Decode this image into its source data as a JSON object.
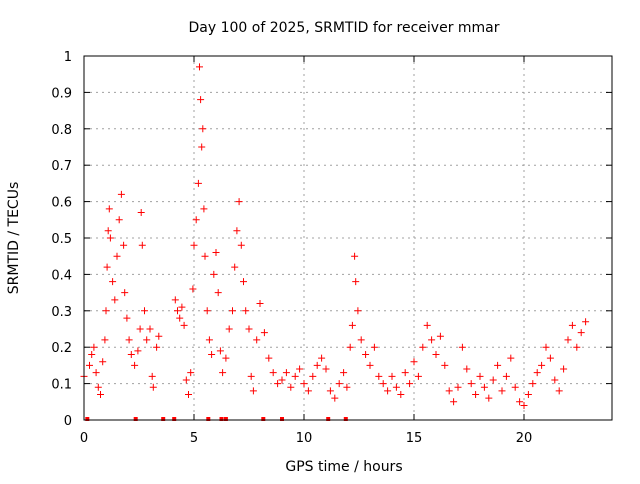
{
  "chart_data": {
    "type": "scatter",
    "title": "Day 100 of 2025, SRMTID for receiver mmar",
    "xlabel": "GPS time / hours",
    "ylabel": "SRMTID / TECUs",
    "xlim": [
      0,
      24
    ],
    "ylim": [
      0,
      1
    ],
    "x_ticks": [
      0,
      5,
      10,
      15,
      20
    ],
    "x_tick_labels": [
      "0",
      "5",
      "10",
      "15",
      "20"
    ],
    "y_ticks": [
      0,
      0.1,
      0.2,
      0.3,
      0.4,
      0.5,
      0.6,
      0.7,
      0.8,
      0.9,
      1
    ],
    "y_tick_labels": [
      "0",
      "0.1",
      "0.2",
      "0.3",
      "0.4",
      "0.5",
      "0.6",
      "0.7",
      "0.8",
      "0.9",
      "1"
    ],
    "grid": true,
    "marker": "+",
    "color": "#ff0000",
    "series": [
      {
        "name": "SRMTID",
        "points": [
          [
            0.0,
            0.12
          ],
          [
            0.25,
            0.15
          ],
          [
            0.35,
            0.18
          ],
          [
            0.45,
            0.2
          ],
          [
            0.55,
            0.13
          ],
          [
            0.65,
            0.09
          ],
          [
            0.75,
            0.07
          ],
          [
            0.85,
            0.16
          ],
          [
            0.95,
            0.22
          ],
          [
            1.0,
            0.3
          ],
          [
            1.05,
            0.42
          ],
          [
            1.1,
            0.52
          ],
          [
            1.15,
            0.58
          ],
          [
            1.2,
            0.5
          ],
          [
            1.3,
            0.38
          ],
          [
            1.4,
            0.33
          ],
          [
            1.5,
            0.45
          ],
          [
            1.6,
            0.55
          ],
          [
            1.7,
            0.62
          ],
          [
            1.8,
            0.48
          ],
          [
            1.85,
            0.35
          ],
          [
            1.95,
            0.28
          ],
          [
            2.05,
            0.22
          ],
          [
            2.15,
            0.18
          ],
          [
            2.3,
            0.15
          ],
          [
            2.45,
            0.19
          ],
          [
            2.55,
            0.25
          ],
          [
            2.6,
            0.57
          ],
          [
            2.65,
            0.48
          ],
          [
            2.75,
            0.3
          ],
          [
            2.85,
            0.22
          ],
          [
            3.0,
            0.25
          ],
          [
            3.1,
            0.12
          ],
          [
            3.15,
            0.09
          ],
          [
            3.3,
            0.2
          ],
          [
            3.4,
            0.23
          ],
          [
            4.15,
            0.33
          ],
          [
            4.25,
            0.3
          ],
          [
            4.35,
            0.28
          ],
          [
            4.45,
            0.31
          ],
          [
            4.55,
            0.26
          ],
          [
            4.65,
            0.11
          ],
          [
            4.75,
            0.07
          ],
          [
            4.85,
            0.13
          ],
          [
            4.95,
            0.36
          ],
          [
            5.0,
            0.48
          ],
          [
            5.1,
            0.55
          ],
          [
            5.2,
            0.65
          ],
          [
            5.25,
            0.97
          ],
          [
            5.3,
            0.88
          ],
          [
            5.35,
            0.75
          ],
          [
            5.4,
            0.8
          ],
          [
            5.45,
            0.58
          ],
          [
            5.5,
            0.45
          ],
          [
            5.6,
            0.3
          ],
          [
            5.7,
            0.22
          ],
          [
            5.8,
            0.18
          ],
          [
            5.9,
            0.4
          ],
          [
            6.0,
            0.46
          ],
          [
            6.1,
            0.35
          ],
          [
            6.2,
            0.19
          ],
          [
            6.3,
            0.13
          ],
          [
            6.45,
            0.17
          ],
          [
            6.6,
            0.25
          ],
          [
            6.75,
            0.3
          ],
          [
            6.85,
            0.42
          ],
          [
            6.95,
            0.52
          ],
          [
            7.05,
            0.6
          ],
          [
            7.15,
            0.48
          ],
          [
            7.25,
            0.38
          ],
          [
            7.35,
            0.3
          ],
          [
            7.5,
            0.25
          ],
          [
            7.6,
            0.12
          ],
          [
            7.7,
            0.08
          ],
          [
            7.85,
            0.22
          ],
          [
            8.0,
            0.32
          ],
          [
            8.2,
            0.24
          ],
          [
            8.4,
            0.17
          ],
          [
            8.6,
            0.13
          ],
          [
            8.8,
            0.1
          ],
          [
            9.0,
            0.11
          ],
          [
            9.2,
            0.13
          ],
          [
            9.4,
            0.09
          ],
          [
            9.6,
            0.12
          ],
          [
            9.8,
            0.14
          ],
          [
            10.0,
            0.1
          ],
          [
            10.2,
            0.08
          ],
          [
            10.4,
            0.12
          ],
          [
            10.6,
            0.15
          ],
          [
            10.8,
            0.17
          ],
          [
            11.0,
            0.14
          ],
          [
            11.2,
            0.08
          ],
          [
            11.4,
            0.06
          ],
          [
            11.6,
            0.1
          ],
          [
            11.8,
            0.13
          ],
          [
            11.95,
            0.09
          ],
          [
            12.1,
            0.2
          ],
          [
            12.2,
            0.26
          ],
          [
            12.3,
            0.45
          ],
          [
            12.35,
            0.38
          ],
          [
            12.45,
            0.3
          ],
          [
            12.6,
            0.22
          ],
          [
            12.8,
            0.18
          ],
          [
            13.0,
            0.15
          ],
          [
            13.2,
            0.2
          ],
          [
            13.4,
            0.12
          ],
          [
            13.6,
            0.1
          ],
          [
            13.8,
            0.08
          ],
          [
            14.0,
            0.12
          ],
          [
            14.2,
            0.09
          ],
          [
            14.4,
            0.07
          ],
          [
            14.6,
            0.13
          ],
          [
            14.8,
            0.1
          ],
          [
            15.0,
            0.16
          ],
          [
            15.2,
            0.12
          ],
          [
            15.4,
            0.2
          ],
          [
            15.6,
            0.26
          ],
          [
            15.8,
            0.22
          ],
          [
            16.0,
            0.18
          ],
          [
            16.2,
            0.23
          ],
          [
            16.4,
            0.15
          ],
          [
            16.6,
            0.08
          ],
          [
            16.8,
            0.05
          ],
          [
            17.0,
            0.09
          ],
          [
            17.2,
            0.2
          ],
          [
            17.4,
            0.14
          ],
          [
            17.6,
            0.1
          ],
          [
            17.8,
            0.07
          ],
          [
            18.0,
            0.12
          ],
          [
            18.2,
            0.09
          ],
          [
            18.4,
            0.06
          ],
          [
            18.6,
            0.11
          ],
          [
            18.8,
            0.15
          ],
          [
            19.0,
            0.08
          ],
          [
            19.2,
            0.12
          ],
          [
            19.4,
            0.17
          ],
          [
            19.6,
            0.09
          ],
          [
            19.8,
            0.05
          ],
          [
            20.0,
            0.04
          ],
          [
            20.2,
            0.07
          ],
          [
            20.4,
            0.1
          ],
          [
            20.6,
            0.13
          ],
          [
            20.8,
            0.15
          ],
          [
            21.0,
            0.2
          ],
          [
            21.2,
            0.17
          ],
          [
            21.4,
            0.11
          ],
          [
            21.6,
            0.08
          ],
          [
            21.8,
            0.14
          ],
          [
            22.0,
            0.22
          ],
          [
            22.2,
            0.26
          ],
          [
            22.4,
            0.2
          ],
          [
            22.6,
            0.24
          ],
          [
            22.8,
            0.27
          ]
        ]
      }
    ],
    "zero_markers_x": [
      0.15,
      2.35,
      3.6,
      4.1,
      5.65,
      6.25,
      6.45,
      8.15,
      9.0,
      11.1,
      11.9
    ]
  }
}
